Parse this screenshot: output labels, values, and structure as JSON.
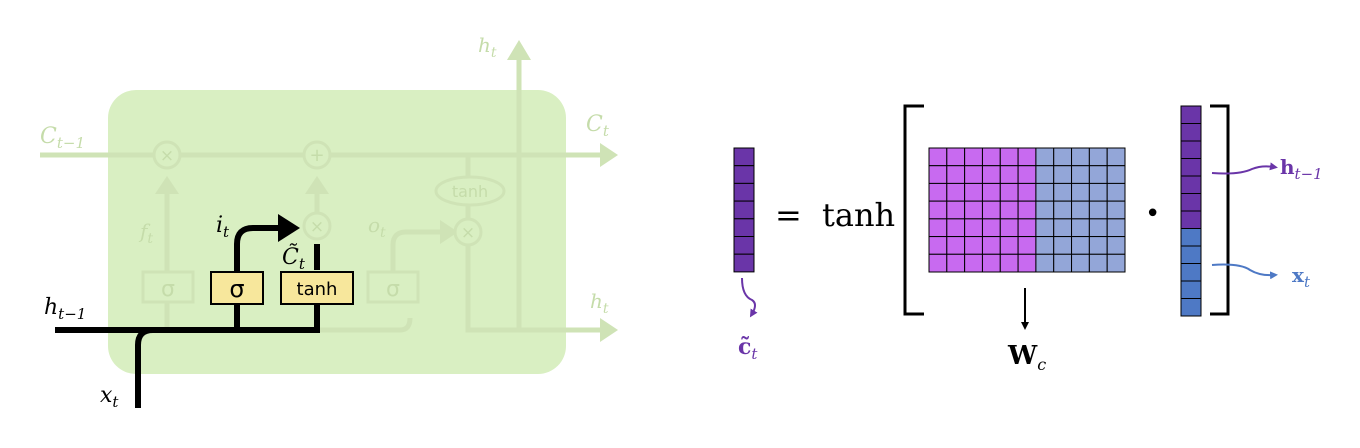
{
  "lstm": {
    "labels": {
      "c_prev": "C",
      "c_prev_sub": "t−1",
      "c_out": "C",
      "c_out_sub": "t",
      "h_top": "h",
      "h_top_sub": "t",
      "h_right": "h",
      "h_right_sub": "t",
      "h_prev": "h",
      "h_prev_sub": "t−1",
      "x_in": "x",
      "x_in_sub": "t",
      "f": "f",
      "f_sub": "t",
      "i": "i",
      "i_sub": "t",
      "c_tilde": "C̃",
      "c_tilde_sub": "t",
      "o": "o",
      "o_sub": "t"
    },
    "ops": {
      "times": "×",
      "plus": "+"
    },
    "gates": {
      "forget": "σ",
      "input": "σ",
      "candidate": "tanh",
      "output": "σ",
      "tanh_out": "tanh"
    },
    "colors": {
      "cell_fill": "#d9efc2",
      "faded_stroke": "#cfe3b6",
      "faded_text": "#c5dcaa",
      "active": "#000000",
      "gate_fill": "#f7e79c"
    }
  },
  "equation": {
    "lhs": "c̃",
    "lhs_sub": "t",
    "equals": "=",
    "func": "tanh",
    "dot": "•",
    "weight": "W",
    "weight_sub": "c",
    "h_label": "h",
    "h_sub": "t−1",
    "x_label": "x",
    "x_sub": "t",
    "colors": {
      "vector": "#6a35a8",
      "weight_h": "#c86af0",
      "weight_x": "#93a6d8",
      "x_part": "#4e79c5",
      "h_text": "#6a35a8",
      "x_text": "#4e79c5"
    }
  }
}
